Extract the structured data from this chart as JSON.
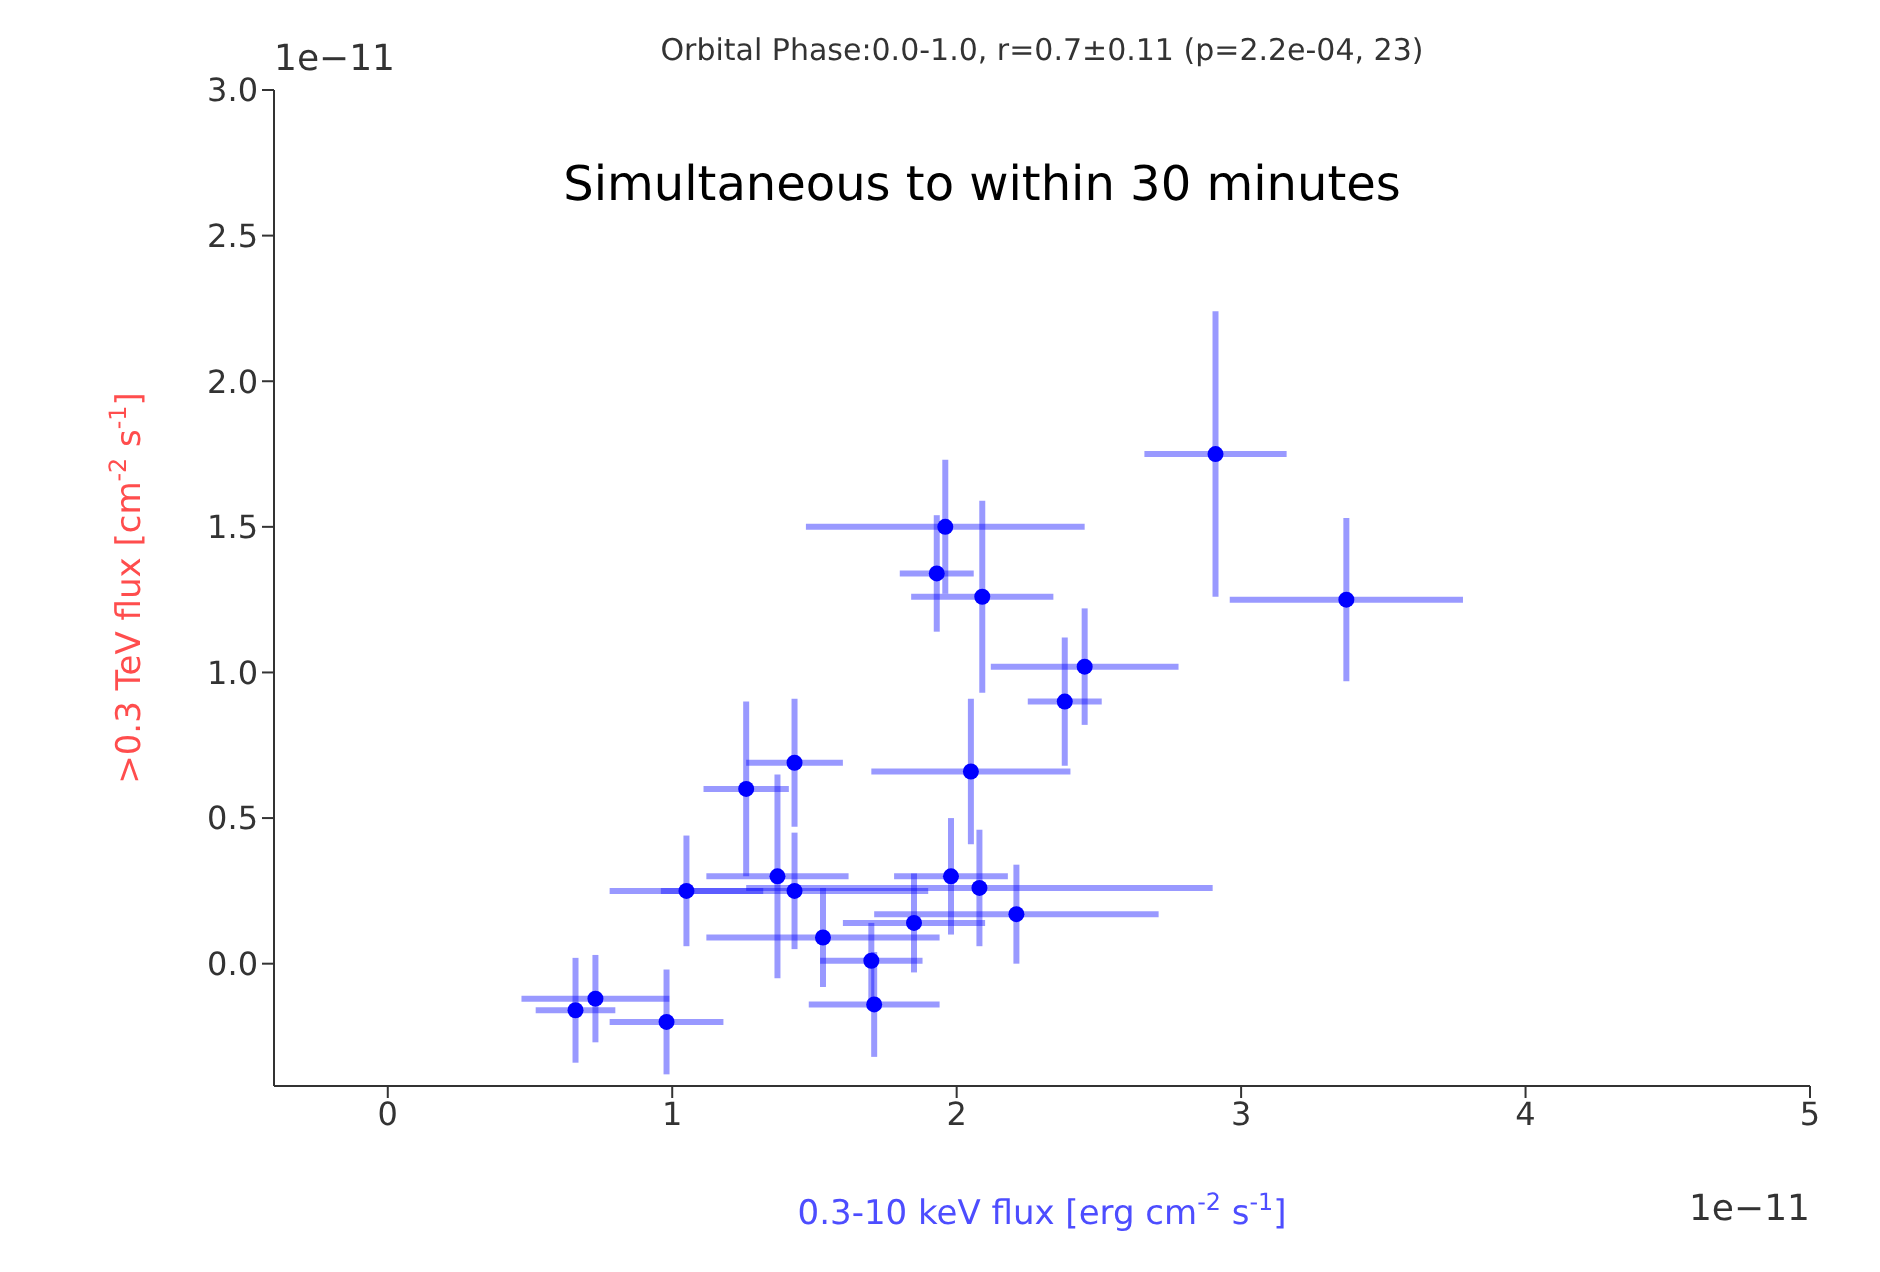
{
  "chart_data": {
    "type": "scatter",
    "title": "Orbital Phase:0.0-1.0, r=0.7±0.11 (p=2.2e-04, 23)",
    "xlabel": "0.3-10 keV flux [erg cm$^{-2}$ s$^{-1}$]",
    "ylabel": ">0.3 TeV flux [cm$^{-2}$ s$^{-1}$]",
    "annotations": [
      "Simultaneous to within 30 minutes",
      "1e−11",
      "1e−11"
    ],
    "color": "#0000ff",
    "marker": "circle",
    "grid": false,
    "legend": false,
    "x": [
      2.91,
      3.37,
      1.96,
      1.93,
      2.09,
      2.45,
      2.38,
      2.05,
      1.43,
      1.26,
      1.05,
      1.37,
      1.43,
      1.53,
      1.7,
      1.71,
      1.85,
      1.98,
      2.08,
      2.21,
      0.73,
      0.66,
      0.98
    ],
    "values": [
      1.75,
      1.25,
      1.5,
      1.34,
      1.26,
      1.02,
      0.9,
      0.66,
      0.69,
      0.6,
      0.25,
      0.3,
      0.25,
      0.09,
      0.01,
      -0.14,
      0.14,
      0.3,
      0.26,
      0.17,
      -0.12,
      -0.16,
      -0.2
    ],
    "errors": [
      0.49,
      0.28,
      0.23,
      0.2,
      0.33,
      0.2,
      0.22,
      0.25,
      0.22,
      0.3,
      0.19,
      0.35,
      0.2,
      0.17,
      0.13,
      0.18,
      0.17,
      0.2,
      0.2,
      0.17,
      0.15,
      0.18,
      0.18
    ],
    "xerrors": [
      0.25,
      0.41,
      0.49,
      0.13,
      0.25,
      0.33,
      0.13,
      0.35,
      0.17,
      0.15,
      0.27,
      0.25,
      0.47,
      0.41,
      0.18,
      0.23,
      0.25,
      0.2,
      0.82,
      0.5,
      0.26,
      0.14,
      0.2
    ],
    "xlim": [
      -0.4,
      5
    ],
    "xticks": [
      0,
      1,
      2,
      3,
      4,
      5
    ],
    "ylim": [
      -0.42,
      3.0
    ],
    "yticks": [
      {
        "value": 0,
        "label": "0.0"
      },
      0.5,
      {
        "value": 1,
        "label": "1.0"
      },
      1.5,
      {
        "value": 2,
        "label": "2.0"
      },
      2.5,
      {
        "value": 3,
        "label": "3.0"
      }
    ]
  }
}
